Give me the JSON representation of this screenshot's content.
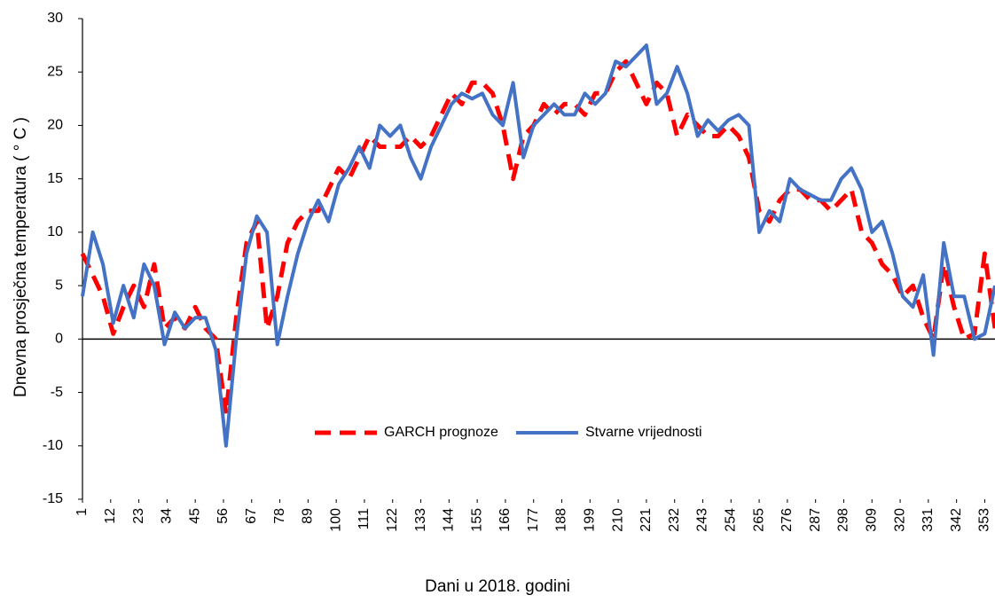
{
  "chart_data": {
    "type": "line",
    "x_label": "Dani u 2018. godini",
    "y_label": "Dnevna prosječna temperatura ( ° C )",
    "x": [
      1,
      5,
      9,
      13,
      17,
      21,
      25,
      29,
      33,
      37,
      41,
      45,
      49,
      53,
      57,
      61,
      65,
      69,
      73,
      77,
      81,
      85,
      89,
      93,
      97,
      101,
      105,
      109,
      113,
      117,
      121,
      125,
      129,
      133,
      137,
      141,
      145,
      149,
      153,
      157,
      161,
      165,
      169,
      173,
      177,
      181,
      185,
      189,
      193,
      197,
      201,
      205,
      209,
      213,
      217,
      221,
      225,
      229,
      233,
      237,
      241,
      245,
      249,
      253,
      257,
      261,
      265,
      269,
      273,
      277,
      281,
      285,
      289,
      293,
      297,
      301,
      305,
      309,
      313,
      317,
      321,
      325,
      329,
      333,
      337,
      341,
      345,
      349,
      353,
      357
    ],
    "series": [
      {
        "name": "GARCH prognoze",
        "color": "#ff0000",
        "dash": true,
        "values": [
          8,
          6,
          4,
          0.5,
          3,
          5,
          3,
          7,
          1,
          2,
          1,
          3,
          1,
          0,
          -7,
          2,
          9,
          11,
          1,
          4,
          9,
          11,
          12,
          12,
          14,
          16,
          15,
          17,
          19,
          18,
          18,
          18,
          19,
          18,
          19,
          21,
          23,
          22,
          24,
          24,
          23,
          20,
          15,
          19,
          20,
          22,
          21,
          22,
          22,
          21,
          23,
          23,
          25,
          26,
          24,
          22,
          24,
          23,
          19,
          21,
          20,
          19,
          19,
          20,
          19,
          17,
          12,
          11,
          13,
          14,
          14,
          13,
          13,
          12,
          13,
          14,
          10,
          9,
          7,
          6,
          4,
          5,
          2,
          0,
          7,
          3,
          0,
          0.5,
          8,
          1
        ]
      },
      {
        "name": "Stvarne vrijednosti",
        "color": "#4472c4",
        "dash": false,
        "values": [
          4,
          10,
          7,
          1.5,
          5,
          2,
          7,
          5,
          -0.5,
          2.5,
          1,
          2,
          2,
          -1,
          -10,
          0,
          8,
          11.5,
          10,
          -0.5,
          4,
          8,
          11,
          13,
          11,
          14.5,
          16,
          18,
          16,
          20,
          19,
          20,
          17,
          15,
          18,
          20,
          22,
          23,
          22.5,
          23,
          21,
          20,
          24,
          17,
          20,
          21,
          22,
          21,
          21,
          23,
          22,
          23,
          26,
          25.5,
          26.5,
          27.5,
          22,
          23,
          25.5,
          23,
          19,
          20.5,
          19.5,
          20.5,
          21,
          20,
          10,
          12,
          11,
          15,
          14,
          13.5,
          13,
          13,
          15,
          16,
          14,
          10,
          11,
          8,
          4,
          3,
          6,
          -1.5,
          9,
          4,
          4,
          0,
          0.5,
          5
        ]
      }
    ],
    "xlim": [
      1,
      357
    ],
    "xticks": [
      1,
      12,
      23,
      34,
      45,
      56,
      67,
      78,
      89,
      100,
      111,
      122,
      133,
      144,
      155,
      166,
      177,
      188,
      199,
      210,
      221,
      232,
      243,
      254,
      265,
      276,
      287,
      298,
      309,
      320,
      331,
      342,
      353
    ],
    "ylim": [
      -15,
      30
    ],
    "yticks": [
      -15,
      -10,
      -5,
      0,
      5,
      10,
      15,
      20,
      25,
      30
    ]
  }
}
